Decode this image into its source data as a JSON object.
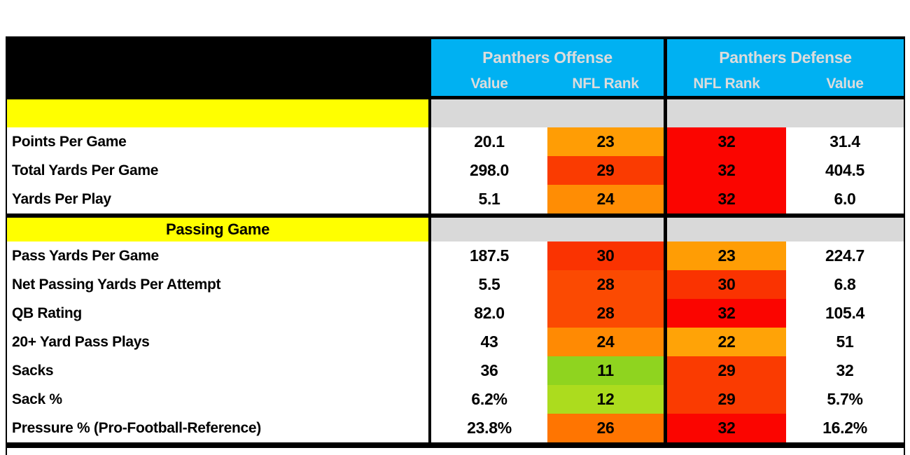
{
  "colors": {
    "header_blue": "#00B1F2",
    "header_text": "#DCDCDC",
    "section_yellow": "#FFFF00",
    "section_gray": "#D9D9D9",
    "border_black": "#000000",
    "rank_red": "#FB0500",
    "rank_green": "#8FD41F"
  },
  "chart_data": {
    "type": "table",
    "title": "",
    "column_groups": [
      {
        "label": "Panthers Offense",
        "cols": [
          "Value",
          "NFL Rank"
        ]
      },
      {
        "label": "Panthers Defense",
        "cols": [
          "NFL Rank",
          "Value"
        ]
      }
    ],
    "rows": [
      {
        "type": "section",
        "label": ""
      },
      {
        "type": "stat",
        "label": "Points Per Game",
        "offense_value": "20.1",
        "offense_rank": "23",
        "offense_rank_bg": "#FF9D05",
        "defense_rank": "32",
        "defense_rank_bg": "#FB0500",
        "defense_value": "31.4"
      },
      {
        "type": "stat",
        "label": "Total Yards Per Game",
        "offense_value": "298.0",
        "offense_rank": "29",
        "offense_rank_bg": "#FA3B01",
        "defense_rank": "32",
        "defense_rank_bg": "#FB0500",
        "defense_value": "404.5"
      },
      {
        "type": "stat",
        "label": "Yards Per Play",
        "offense_value": "5.1",
        "offense_rank": "24",
        "offense_rank_bg": "#FF8D04",
        "defense_rank": "32",
        "defense_rank_bg": "#FB0500",
        "defense_value": "6.0"
      },
      {
        "type": "section",
        "label": "Passing Game"
      },
      {
        "type": "stat",
        "label": "Pass Yards Per Game",
        "offense_value": "187.5",
        "offense_rank": "30",
        "offense_rank_bg": "#FA3301",
        "defense_rank": "23",
        "defense_rank_bg": "#FF9D05",
        "defense_value": "224.7"
      },
      {
        "type": "stat",
        "label": "Net Passing Yards Per Attempt",
        "offense_value": "5.5",
        "offense_rank": "28",
        "offense_rank_bg": "#FB4A02",
        "defense_rank": "30",
        "defense_rank_bg": "#FA3301",
        "defense_value": "6.8"
      },
      {
        "type": "stat",
        "label": "QB Rating",
        "offense_value": "82.0",
        "offense_rank": "28",
        "offense_rank_bg": "#FB4A02",
        "defense_rank": "32",
        "defense_rank_bg": "#FB0500",
        "defense_value": "105.4"
      },
      {
        "type": "stat",
        "label": "20+ Yard Pass Plays",
        "offense_value": "43",
        "offense_rank": "24",
        "offense_rank_bg": "#FF8A03",
        "defense_rank": "22",
        "defense_rank_bg": "#FFA307",
        "defense_value": "51"
      },
      {
        "type": "stat",
        "label": "Sacks",
        "offense_value": "36",
        "offense_rank": "11",
        "offense_rank_bg": "#8FD41F",
        "defense_rank": "29",
        "defense_rank_bg": "#FA3B01",
        "defense_value": "32"
      },
      {
        "type": "stat",
        "label": "Sack %",
        "offense_value": "6.2%",
        "offense_rank": "12",
        "offense_rank_bg": "#ACDC1E",
        "defense_rank": "29",
        "defense_rank_bg": "#FA3B01",
        "defense_value": "5.7%"
      },
      {
        "type": "stat",
        "label": "Pressure % (Pro-Football-Reference)",
        "offense_value": "23.8%",
        "offense_rank": "26",
        "offense_rank_bg": "#FF7501",
        "defense_rank": "32",
        "defense_rank_bg": "#FB0500",
        "defense_value": "16.2%"
      }
    ]
  }
}
